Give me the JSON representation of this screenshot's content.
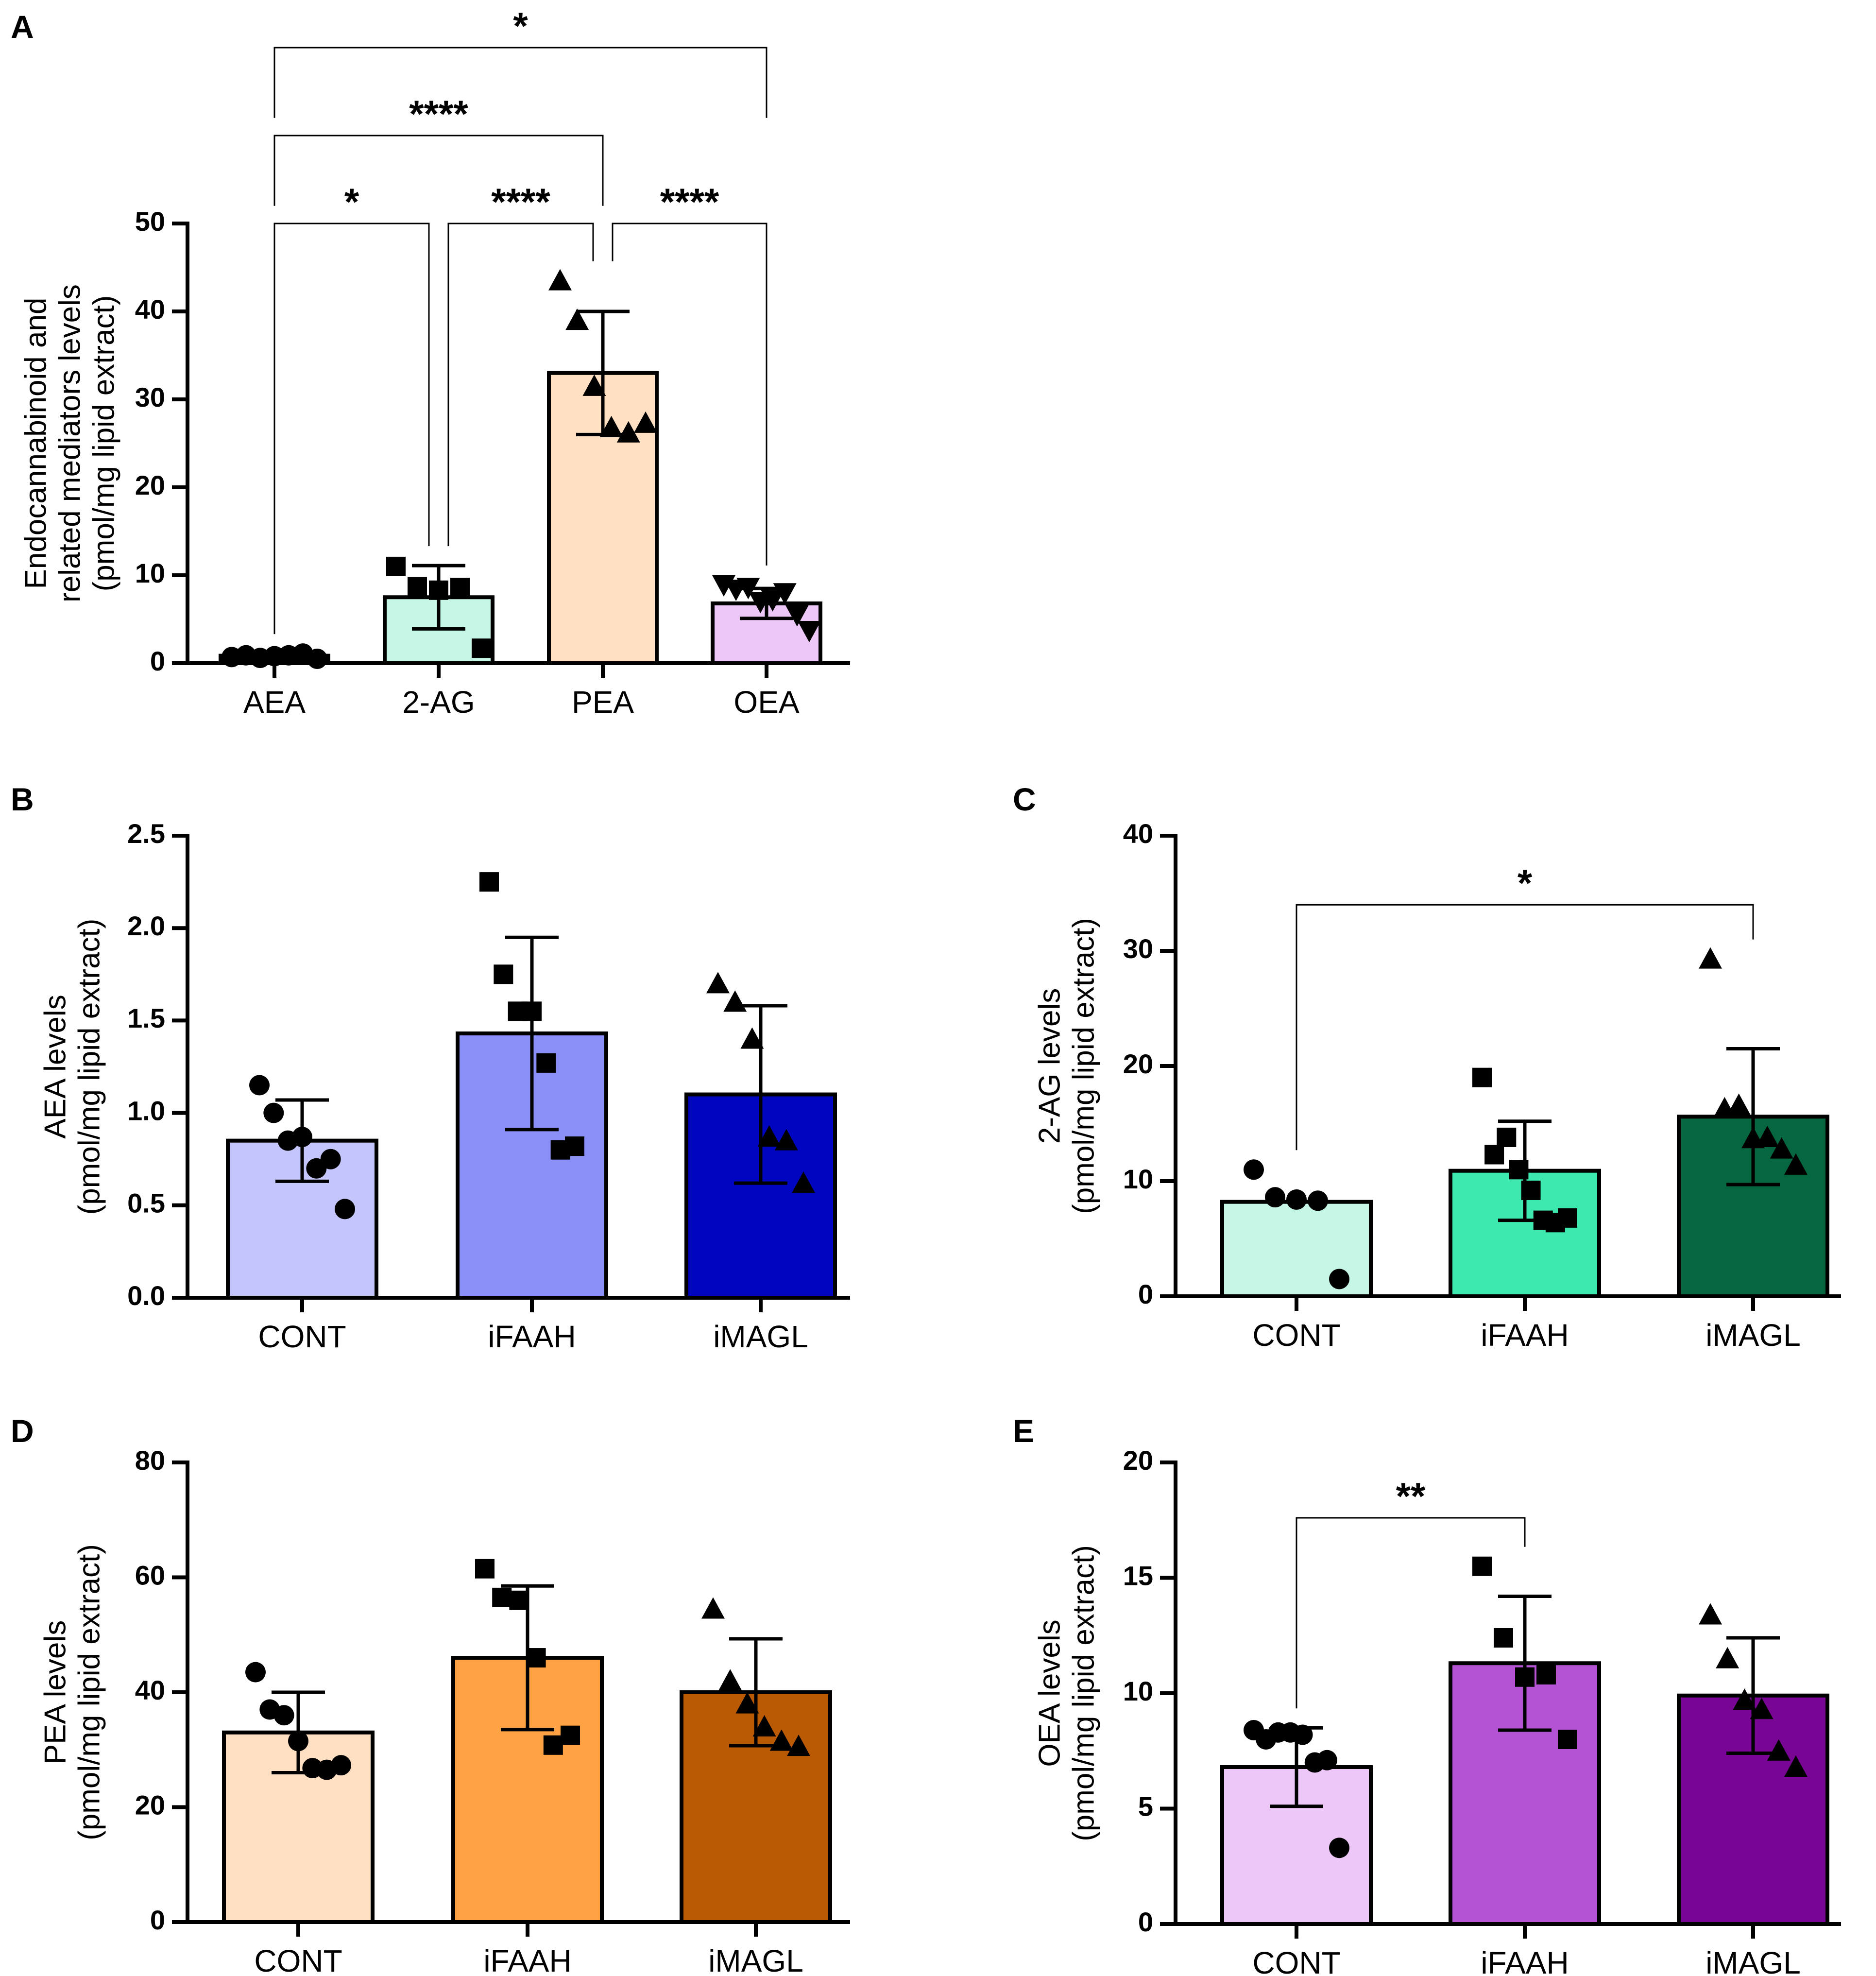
{
  "chart_data": [
    {
      "panel": "A",
      "type": "bar",
      "categories": [
        "AEA",
        "2-AG",
        "PEA",
        "OEA"
      ],
      "values": [
        0.85,
        7.5,
        33.0,
        6.8
      ],
      "errors": [
        0.2,
        3.6,
        7.0,
        1.7
      ],
      "colors": [
        "#c4c6fb",
        "#c6f7e6",
        "#ffe0c2",
        "#edc7f7"
      ],
      "markers": [
        "circle",
        "square",
        "triangle",
        "triangle-down"
      ],
      "points": [
        [
          0.7,
          0.9,
          0.6,
          0.8,
          0.9,
          1.1,
          0.5
        ],
        [
          11.0,
          8.7,
          8.3,
          8.6,
          1.7
        ],
        [
          43.5,
          39.0,
          31.5,
          26.8,
          26.2,
          27.3
        ],
        [
          8.9,
          8.4,
          8.6,
          7.0,
          7.2,
          8.0,
          5.5,
          3.7
        ]
      ],
      "ylabel_lines": [
        "Endocannabinoid and",
        "related mediators levels",
        "(pmol/mg lipid extract)"
      ],
      "ylim": [
        0,
        50
      ],
      "yticks": [
        0,
        10,
        20,
        30,
        40,
        50
      ],
      "ytick_labels": [
        "0",
        "10",
        "20",
        "30",
        "40",
        "50"
      ],
      "significance": [
        {
          "from": 0,
          "to": 1,
          "label": "*",
          "level": 50
        },
        {
          "from": 1,
          "to": 2,
          "label": "****",
          "level": 50
        },
        {
          "from": 2,
          "to": 3,
          "label": "****",
          "level": 50
        },
        {
          "from": 0,
          "to": 2,
          "label": "****",
          "level": 60
        },
        {
          "from": 0,
          "to": 3,
          "label": "*",
          "level": 70
        }
      ]
    },
    {
      "panel": "B",
      "type": "bar",
      "categories": [
        "CONT",
        "iFAAH",
        "iMAGL"
      ],
      "values": [
        0.85,
        1.43,
        1.1
      ],
      "errors": [
        0.22,
        0.52,
        0.48
      ],
      "colors": [
        "#c4c6fb",
        "#8b8ff8",
        "#0006c0"
      ],
      "markers": [
        "circle",
        "square",
        "triangle"
      ],
      "points": [
        [
          1.15,
          1.0,
          0.85,
          0.87,
          0.7,
          0.75,
          0.48
        ],
        [
          2.25,
          1.75,
          1.55,
          1.55,
          1.27,
          0.8,
          0.82
        ],
        [
          1.7,
          1.6,
          1.4,
          0.87,
          0.85,
          0.62
        ]
      ],
      "ylabel_lines": [
        "AEA levels",
        "(pmol/mg lipid extract)"
      ],
      "ylim": [
        0,
        2.5
      ],
      "yticks": [
        0,
        0.5,
        1.0,
        1.5,
        2.0,
        2.5
      ],
      "ytick_labels": [
        "0.0",
        "0.5",
        "1.0",
        "1.5",
        "2.0",
        "2.5"
      ],
      "significance": []
    },
    {
      "panel": "C",
      "type": "bar",
      "categories": [
        "CONT",
        "iFAAH",
        "iMAGL"
      ],
      "values": [
        8.2,
        10.9,
        15.6
      ],
      "errors": [
        0,
        4.3,
        5.9
      ],
      "colors": [
        "#c6f7e6",
        "#3ee9af",
        "#05663f"
      ],
      "markers": [
        "circle",
        "square",
        "triangle"
      ],
      "points": [
        [
          11.0,
          8.6,
          8.4,
          8.3,
          1.5
        ],
        [
          19.0,
          12.3,
          13.8,
          11.0,
          9.2,
          6.6,
          6.4,
          6.8
        ],
        [
          29.3,
          16.3,
          16.6,
          13.7,
          13.8,
          12.8,
          11.4
        ]
      ],
      "ylabel_lines": [
        "2-AG levels",
        "(pmol/mg lipid extract)"
      ],
      "ylim": [
        0,
        40
      ],
      "yticks": [
        0,
        10,
        20,
        30,
        40
      ],
      "ytick_labels": [
        "0",
        "10",
        "20",
        "30",
        "40"
      ],
      "significance": [
        {
          "from": 0,
          "to": 2,
          "label": "*",
          "level": 34
        }
      ]
    },
    {
      "panel": "D",
      "type": "bar",
      "categories": [
        "CONT",
        "iFAAH",
        "iMAGL"
      ],
      "values": [
        33.0,
        46.0,
        40.0
      ],
      "errors": [
        7.0,
        12.5,
        9.3
      ],
      "colors": [
        "#ffe0c2",
        "#fea244",
        "#bb5a04"
      ],
      "markers": [
        "circle",
        "square",
        "triangle"
      ],
      "points": [
        [
          43.5,
          37.0,
          36.0,
          31.5,
          26.8,
          26.5,
          27.3
        ],
        [
          61.5,
          56.5,
          56.0,
          46.0,
          30.8,
          32.5
        ],
        [
          54.5,
          42.0,
          38.0,
          34.0,
          31.5,
          30.6
        ]
      ],
      "ylabel_lines": [
        "PEA levels",
        "(pmol/mg lipid extract)"
      ],
      "ylim": [
        0,
        80
      ],
      "yticks": [
        0,
        20,
        40,
        60,
        80
      ],
      "ytick_labels": [
        "0",
        "20",
        "40",
        "60",
        "80"
      ],
      "significance": []
    },
    {
      "panel": "E",
      "type": "bar",
      "categories": [
        "CONT",
        "iFAAH",
        "iMAGL"
      ],
      "values": [
        6.8,
        11.3,
        9.9
      ],
      "errors": [
        1.7,
        2.9,
        2.5
      ],
      "colors": [
        "#edc7f7",
        "#b553d5",
        "#790595"
      ],
      "markers": [
        "circle",
        "square",
        "triangle"
      ],
      "points": [
        [
          8.4,
          8.0,
          8.3,
          8.3,
          8.2,
          7.0,
          7.1,
          3.3
        ],
        [
          15.5,
          12.4,
          10.7,
          10.8,
          8.0
        ],
        [
          13.4,
          11.5,
          9.7,
          9.3,
          7.5,
          6.8
        ]
      ],
      "ylabel_lines": [
        "OEA levels",
        "(pmol/mg lipid extract)"
      ],
      "ylim": [
        0,
        20
      ],
      "yticks": [
        0,
        5,
        10,
        15,
        20
      ],
      "ytick_labels": [
        "0",
        "5",
        "10",
        "15",
        "20"
      ],
      "significance": [
        {
          "from": 0,
          "to": 1,
          "label": "**",
          "level": 17.6
        }
      ]
    }
  ]
}
